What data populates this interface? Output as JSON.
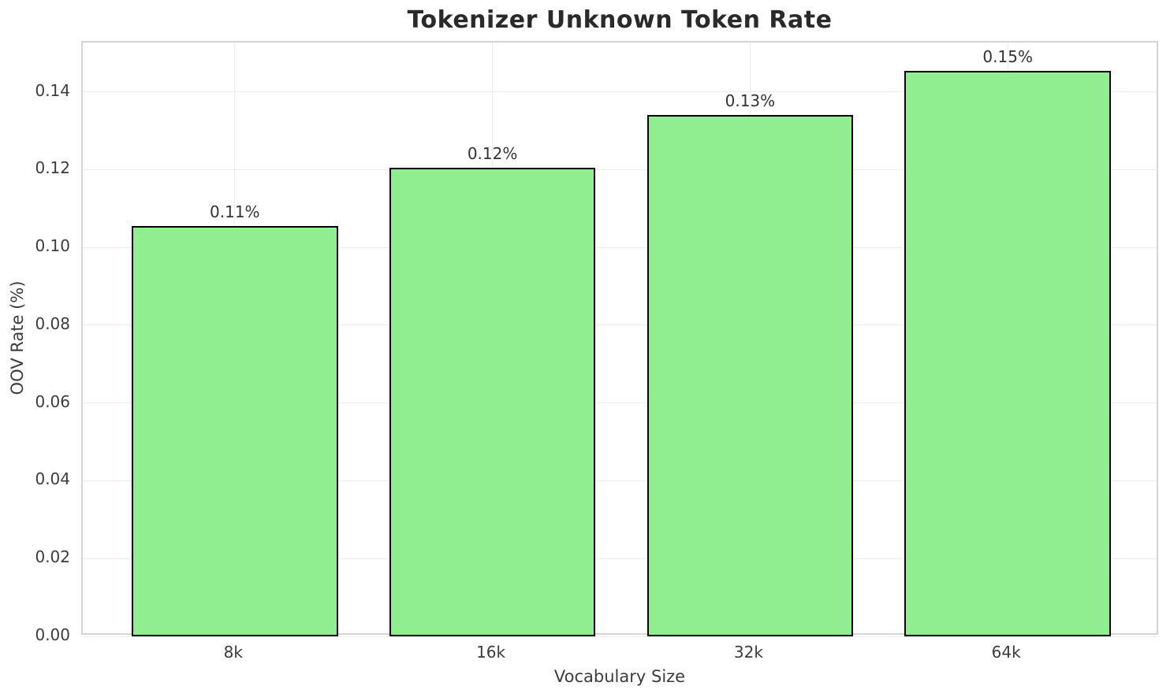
{
  "chart_data": {
    "type": "bar",
    "title": "Tokenizer Unknown Token Rate",
    "xlabel": "Vocabulary Size",
    "ylabel": "OOV Rate (%)",
    "categories": [
      "8k",
      "16k",
      "32k",
      "64k"
    ],
    "values": [
      0.1055,
      0.1205,
      0.134,
      0.1455
    ],
    "bar_labels": [
      "0.11%",
      "0.12%",
      "0.13%",
      "0.15%"
    ],
    "ylim": [
      0,
      0.1527
    ],
    "yticks": [
      0.0,
      0.02,
      0.04,
      0.06,
      0.08,
      0.1,
      0.12,
      0.14
    ],
    "ytick_labels": [
      "0.00",
      "0.02",
      "0.04",
      "0.06",
      "0.08",
      "0.10",
      "0.12",
      "0.14"
    ],
    "grid": true,
    "legend": "none",
    "colors": {
      "bar_fill": "#90EE90",
      "bar_edge": "#000000",
      "gridline": "#ececec",
      "spine": "#d4d4d4",
      "title_text": "#2a2a2a",
      "tick_text": "#3c3c3c",
      "background": "#ffffff"
    }
  }
}
